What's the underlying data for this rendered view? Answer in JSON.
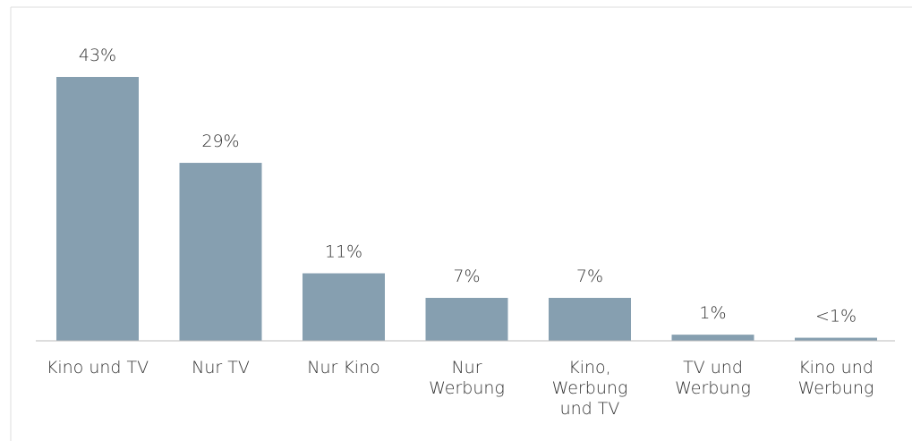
{
  "chart_data": {
    "type": "bar",
    "categories": [
      "Kino und TV",
      "Nur TV",
      "Nur Kino",
      "Nur\nWerbung",
      "Kino,\nWerbung\nund TV",
      "TV und\nWerbung",
      "Kino und\nWerbung"
    ],
    "values": [
      43,
      29,
      11,
      7,
      7,
      1,
      0.5
    ],
    "value_labels": [
      "43%",
      "29%",
      "11%",
      "7%",
      "7%",
      "1%",
      "<1%"
    ],
    "color": "#869fb0"
  }
}
